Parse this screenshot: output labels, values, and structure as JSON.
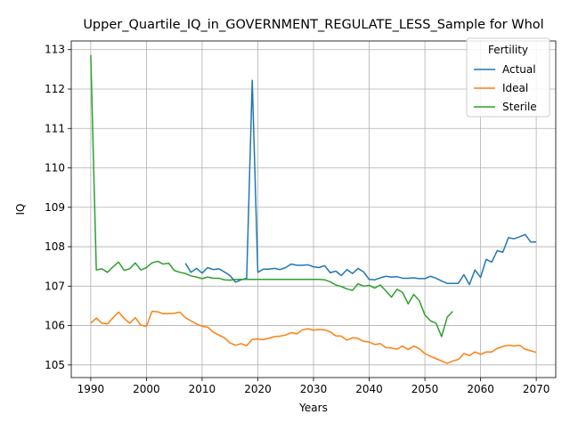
{
  "chart_data": {
    "type": "line",
    "title": "Upper_Quartile_IQ_in_GOVERNMENT_REGULATE_LESS_Sample for Whol",
    "xlabel": "Years",
    "ylabel": "IQ",
    "xlim": [
      1986.5,
      2073.5
    ],
    "ylim": [
      104.68,
      113.22
    ],
    "x_ticks": [
      1990,
      2000,
      2010,
      2020,
      2030,
      2040,
      2050,
      2060,
      2070
    ],
    "y_ticks": [
      105,
      106,
      107,
      108,
      109,
      110,
      111,
      112,
      113
    ],
    "grid": true,
    "legend": {
      "title": "Fertility",
      "placement": "top-right"
    },
    "series": [
      {
        "name": "Actual",
        "color": "#1f77b4",
        "points": [
          [
            2007,
            107.58
          ],
          [
            2008,
            107.35
          ],
          [
            2009,
            107.45
          ],
          [
            2010,
            107.33
          ],
          [
            2011,
            107.47
          ],
          [
            2012,
            107.42
          ],
          [
            2013,
            107.44
          ],
          [
            2014,
            107.36
          ],
          [
            2015,
            107.27
          ],
          [
            2016,
            107.1
          ],
          [
            2017,
            107.16
          ],
          [
            2018,
            107.2
          ],
          [
            2019,
            112.22
          ],
          [
            2020,
            107.35
          ],
          [
            2021,
            107.43
          ],
          [
            2022,
            107.43
          ],
          [
            2023,
            107.45
          ],
          [
            2024,
            107.42
          ],
          [
            2025,
            107.47
          ],
          [
            2026,
            107.56
          ],
          [
            2027,
            107.53
          ],
          [
            2028,
            107.53
          ],
          [
            2029,
            107.54
          ],
          [
            2030,
            107.49
          ],
          [
            2031,
            107.47
          ],
          [
            2032,
            107.52
          ],
          [
            2033,
            107.34
          ],
          [
            2034,
            107.38
          ],
          [
            2035,
            107.27
          ],
          [
            2036,
            107.42
          ],
          [
            2037,
            107.32
          ],
          [
            2038,
            107.45
          ],
          [
            2039,
            107.36
          ],
          [
            2040,
            107.17
          ],
          [
            2041,
            107.16
          ],
          [
            2042,
            107.21
          ],
          [
            2043,
            107.25
          ],
          [
            2044,
            107.23
          ],
          [
            2045,
            107.24
          ],
          [
            2046,
            107.2
          ],
          [
            2047,
            107.2
          ],
          [
            2048,
            107.21
          ],
          [
            2049,
            107.19
          ],
          [
            2050,
            107.19
          ],
          [
            2051,
            107.25
          ],
          [
            2052,
            107.2
          ],
          [
            2053,
            107.13
          ],
          [
            2054,
            107.07
          ],
          [
            2055,
            107.07
          ],
          [
            2056,
            107.07
          ],
          [
            2057,
            107.29
          ],
          [
            2058,
            107.04
          ],
          [
            2059,
            107.41
          ],
          [
            2060,
            107.22
          ],
          [
            2061,
            107.68
          ],
          [
            2062,
            107.61
          ],
          [
            2063,
            107.9
          ],
          [
            2064,
            107.86
          ],
          [
            2065,
            108.23
          ],
          [
            2066,
            108.2
          ],
          [
            2067,
            108.25
          ],
          [
            2068,
            108.31
          ],
          [
            2069,
            108.12
          ],
          [
            2070,
            108.12
          ]
        ]
      },
      {
        "name": "Ideal",
        "color": "#ff7f0e",
        "points": [
          [
            1990,
            106.06
          ],
          [
            1991,
            106.19
          ],
          [
            1992,
            106.06
          ],
          [
            1993,
            106.04
          ],
          [
            1994,
            106.2
          ],
          [
            1995,
            106.34
          ],
          [
            1996,
            106.18
          ],
          [
            1997,
            106.06
          ],
          [
            1998,
            106.2
          ],
          [
            1999,
            106.01
          ],
          [
            2000,
            105.98
          ],
          [
            2001,
            106.36
          ],
          [
            2002,
            106.35
          ],
          [
            2003,
            106.3
          ],
          [
            2004,
            106.3
          ],
          [
            2005,
            106.31
          ],
          [
            2006,
            106.34
          ],
          [
            2007,
            106.2
          ],
          [
            2008,
            106.12
          ],
          [
            2009,
            106.04
          ],
          [
            2010,
            105.98
          ],
          [
            2011,
            105.96
          ],
          [
            2012,
            105.83
          ],
          [
            2013,
            105.76
          ],
          [
            2014,
            105.69
          ],
          [
            2015,
            105.56
          ],
          [
            2016,
            105.5
          ],
          [
            2017,
            105.54
          ],
          [
            2018,
            105.49
          ],
          [
            2019,
            105.65
          ],
          [
            2020,
            105.66
          ],
          [
            2021,
            105.64
          ],
          [
            2022,
            105.68
          ],
          [
            2023,
            105.72
          ],
          [
            2024,
            105.73
          ],
          [
            2025,
            105.76
          ],
          [
            2026,
            105.82
          ],
          [
            2027,
            105.79
          ],
          [
            2028,
            105.89
          ],
          [
            2029,
            105.92
          ],
          [
            2030,
            105.88
          ],
          [
            2031,
            105.9
          ],
          [
            2032,
            105.89
          ],
          [
            2033,
            105.84
          ],
          [
            2034,
            105.74
          ],
          [
            2035,
            105.73
          ],
          [
            2036,
            105.63
          ],
          [
            2037,
            105.69
          ],
          [
            2038,
            105.67
          ],
          [
            2039,
            105.6
          ],
          [
            2040,
            105.58
          ],
          [
            2041,
            105.52
          ],
          [
            2042,
            105.54
          ],
          [
            2043,
            105.44
          ],
          [
            2044,
            105.43
          ],
          [
            2045,
            105.4
          ],
          [
            2046,
            105.48
          ],
          [
            2047,
            105.39
          ],
          [
            2048,
            105.48
          ],
          [
            2049,
            105.41
          ],
          [
            2050,
            105.29
          ],
          [
            2051,
            105.22
          ],
          [
            2052,
            105.16
          ],
          [
            2053,
            105.1
          ],
          [
            2054,
            105.04
          ],
          [
            2055,
            105.1
          ],
          [
            2056,
            105.14
          ],
          [
            2057,
            105.29
          ],
          [
            2058,
            105.24
          ],
          [
            2059,
            105.33
          ],
          [
            2060,
            105.27
          ],
          [
            2061,
            105.33
          ],
          [
            2062,
            105.33
          ],
          [
            2063,
            105.42
          ],
          [
            2064,
            105.47
          ],
          [
            2065,
            105.5
          ],
          [
            2066,
            105.48
          ],
          [
            2067,
            105.5
          ],
          [
            2068,
            105.4
          ],
          [
            2069,
            105.36
          ],
          [
            2070,
            105.32
          ]
        ]
      },
      {
        "name": "Sterile",
        "color": "#2ca02c",
        "points": [
          [
            1990,
            112.86
          ],
          [
            1991,
            107.41
          ],
          [
            1992,
            107.44
          ],
          [
            1993,
            107.35
          ],
          [
            1994,
            107.49
          ],
          [
            1995,
            107.61
          ],
          [
            1996,
            107.4
          ],
          [
            1997,
            107.44
          ],
          [
            1998,
            107.59
          ],
          [
            1999,
            107.41
          ],
          [
            2000,
            107.47
          ],
          [
            2001,
            107.59
          ],
          [
            2002,
            107.63
          ],
          [
            2003,
            107.56
          ],
          [
            2004,
            107.58
          ],
          [
            2005,
            107.4
          ],
          [
            2006,
            107.35
          ],
          [
            2007,
            107.32
          ],
          [
            2008,
            107.26
          ],
          [
            2009,
            107.23
          ],
          [
            2010,
            107.19
          ],
          [
            2011,
            107.23
          ],
          [
            2012,
            107.2
          ],
          [
            2013,
            107.2
          ],
          [
            2014,
            107.16
          ],
          [
            2015,
            107.15
          ],
          [
            2016,
            107.17
          ],
          [
            2017,
            107.17
          ],
          [
            2018,
            107.17
          ],
          [
            2019,
            107.17
          ],
          [
            2020,
            107.17
          ],
          [
            2021,
            107.17
          ],
          [
            2022,
            107.17
          ],
          [
            2023,
            107.17
          ],
          [
            2024,
            107.17
          ],
          [
            2025,
            107.17
          ],
          [
            2026,
            107.17
          ],
          [
            2027,
            107.17
          ],
          [
            2028,
            107.17
          ],
          [
            2029,
            107.17
          ],
          [
            2030,
            107.17
          ],
          [
            2031,
            107.17
          ],
          [
            2032,
            107.16
          ],
          [
            2033,
            107.11
          ],
          [
            2034,
            107.03
          ],
          [
            2035,
            106.99
          ],
          [
            2036,
            106.93
          ],
          [
            2037,
            106.89
          ],
          [
            2038,
            107.06
          ],
          [
            2039,
            107.0
          ],
          [
            2040,
            107.02
          ],
          [
            2041,
            106.95
          ],
          [
            2042,
            107.03
          ],
          [
            2043,
            106.88
          ],
          [
            2044,
            106.72
          ],
          [
            2045,
            106.92
          ],
          [
            2046,
            106.84
          ],
          [
            2047,
            106.55
          ],
          [
            2048,
            106.79
          ],
          [
            2049,
            106.63
          ],
          [
            2050,
            106.27
          ],
          [
            2051,
            106.12
          ],
          [
            2052,
            106.06
          ],
          [
            2053,
            105.72
          ],
          [
            2054,
            106.21
          ],
          [
            2055,
            106.36
          ]
        ]
      }
    ]
  }
}
